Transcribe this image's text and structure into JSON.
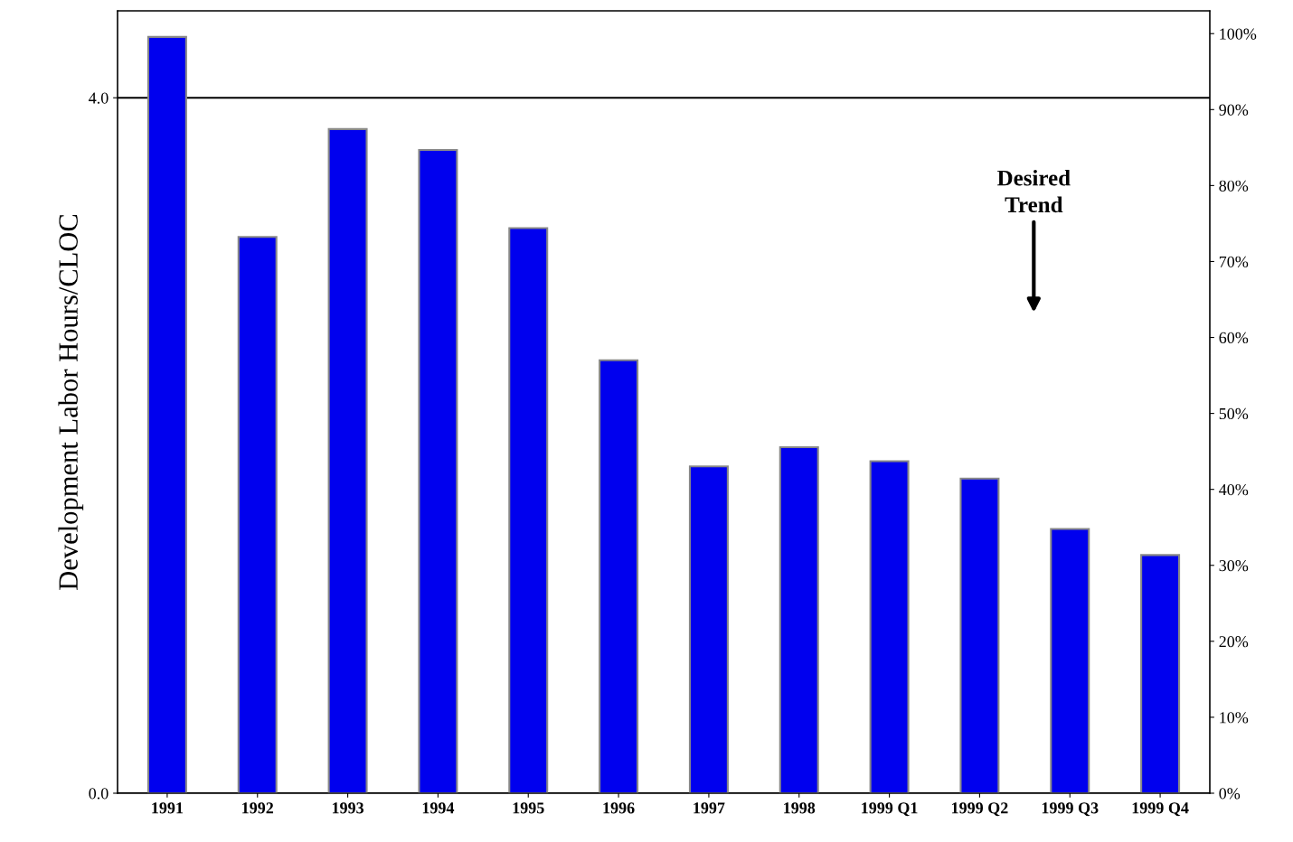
{
  "chart_data": {
    "type": "bar",
    "ylabel": "Development Labor Hours/CLOC",
    "categories": [
      "1991",
      "1992",
      "1993",
      "1994",
      "1995",
      "1996",
      "1997",
      "1998",
      "1999 Q1",
      "1999 Q2",
      "1999 Q3",
      "1999 Q4"
    ],
    "series": [
      {
        "color": "#0000ee",
        "values": [
          4.35,
          3.2,
          3.82,
          3.7,
          3.25,
          2.49,
          1.88,
          1.99,
          1.91,
          1.81,
          1.52,
          1.37
        ]
      }
    ],
    "ylim": [
      0,
      4.5
    ],
    "yticks": [
      {
        "value": 0,
        "label": "0.0"
      },
      {
        "value": 4,
        "label": "4.0"
      }
    ],
    "y2lim": [
      0,
      103
    ],
    "y2ticks": [
      {
        "value": 0,
        "label": "0%"
      },
      {
        "value": 10,
        "label": "10%"
      },
      {
        "value": 20,
        "label": "20%"
      },
      {
        "value": 30,
        "label": "30%"
      },
      {
        "value": 40,
        "label": "40%"
      },
      {
        "value": 50,
        "label": "50%"
      },
      {
        "value": 60,
        "label": "60%"
      },
      {
        "value": 70,
        "label": "70%"
      },
      {
        "value": 80,
        "label": "80%"
      },
      {
        "value": 90,
        "label": "90%"
      },
      {
        "value": 100,
        "label": "100%"
      }
    ],
    "grid": "y",
    "annotations": [
      "Desired\nTrend"
    ]
  }
}
